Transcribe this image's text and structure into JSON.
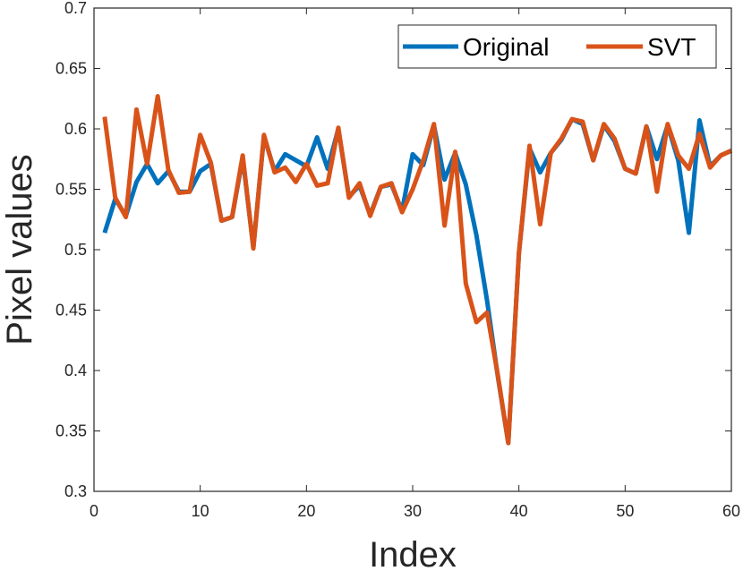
{
  "chart_data": {
    "type": "line",
    "xlabel": "Index",
    "ylabel": "Pixel values",
    "xlim": [
      0,
      60
    ],
    "ylim": [
      0.3,
      0.7
    ],
    "x_ticks": [
      "0",
      "10",
      "20",
      "30",
      "40",
      "50",
      "60"
    ],
    "y_ticks": [
      "0.3",
      "0.35",
      "0.4",
      "0.45",
      "0.5",
      "0.55",
      "0.6",
      "0.65",
      "0.7"
    ],
    "grid": false,
    "legend_position": "top-right",
    "x": [
      1,
      2,
      3,
      4,
      5,
      6,
      7,
      8,
      9,
      10,
      11,
      12,
      13,
      14,
      15,
      16,
      17,
      18,
      19,
      20,
      21,
      22,
      23,
      24,
      25,
      26,
      27,
      28,
      29,
      30,
      31,
      32,
      33,
      34,
      35,
      36,
      37,
      38,
      39,
      40,
      41,
      42,
      43,
      44,
      45,
      46,
      47,
      48,
      49,
      50,
      51,
      52,
      53,
      54,
      55,
      56,
      57,
      58,
      59,
      60
    ],
    "series": [
      {
        "name": "Original",
        "color": "#0072BD",
        "values": [
          0.514,
          0.542,
          0.528,
          0.556,
          0.571,
          0.555,
          0.565,
          0.548,
          0.548,
          0.565,
          0.571,
          0.524,
          0.527,
          0.576,
          0.502,
          0.594,
          0.565,
          0.579,
          0.574,
          0.569,
          0.593,
          0.567,
          0.6,
          0.544,
          0.553,
          0.529,
          0.552,
          0.554,
          0.532,
          0.579,
          0.57,
          0.603,
          0.558,
          0.58,
          0.554,
          0.512,
          0.458,
          0.396,
          0.34,
          0.497,
          0.584,
          0.564,
          0.58,
          0.591,
          0.608,
          0.604,
          0.574,
          0.603,
          0.59,
          0.567,
          0.563,
          0.602,
          0.575,
          0.603,
          0.574,
          0.514,
          0.607,
          0.569,
          0.578,
          0.582
        ]
      },
      {
        "name": "SVT",
        "color": "#D95319",
        "values": [
          0.61,
          0.543,
          0.527,
          0.616,
          0.571,
          0.627,
          0.566,
          0.547,
          0.548,
          0.595,
          0.572,
          0.524,
          0.527,
          0.578,
          0.501,
          0.595,
          0.564,
          0.568,
          0.556,
          0.571,
          0.553,
          0.555,
          0.601,
          0.543,
          0.555,
          0.528,
          0.552,
          0.555,
          0.531,
          0.55,
          0.574,
          0.604,
          0.52,
          0.581,
          0.472,
          0.44,
          0.448,
          0.397,
          0.34,
          0.497,
          0.586,
          0.521,
          0.58,
          0.592,
          0.608,
          0.606,
          0.574,
          0.604,
          0.592,
          0.567,
          0.563,
          0.602,
          0.548,
          0.604,
          0.578,
          0.567,
          0.596,
          0.568,
          0.578,
          0.582
        ]
      }
    ]
  }
}
